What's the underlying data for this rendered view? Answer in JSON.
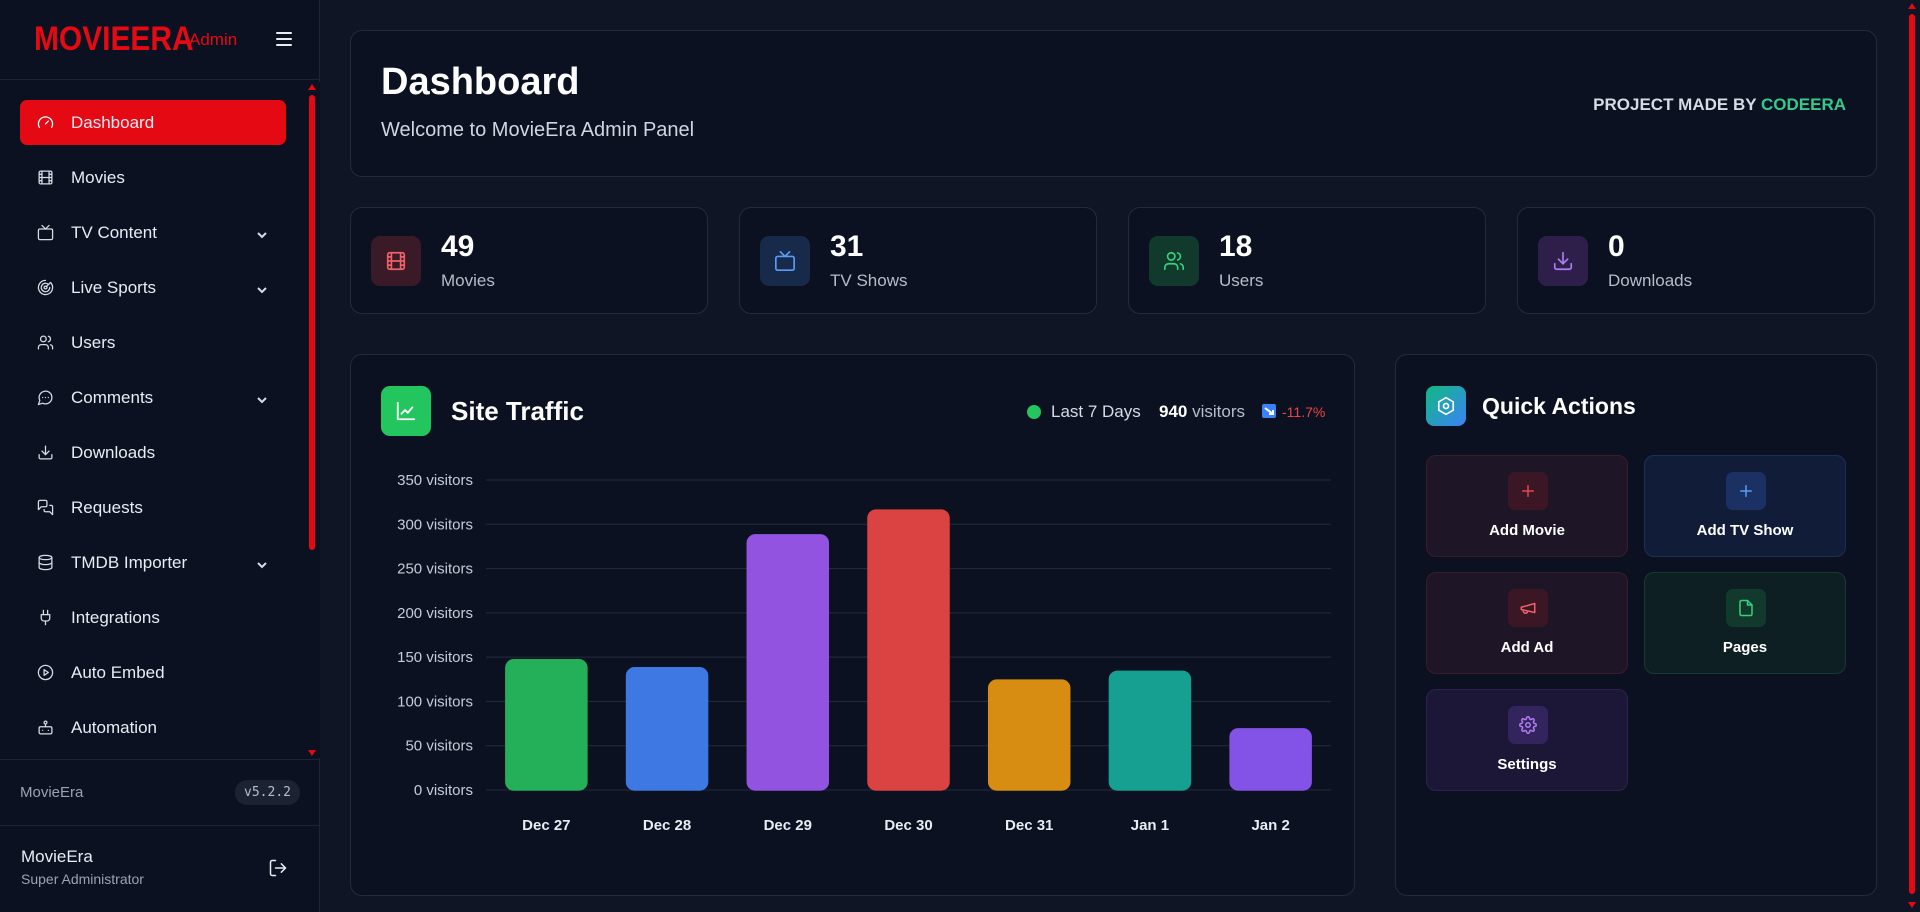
{
  "sidebar": {
    "logo": "MOVIEERA",
    "admin_tag": "Admin",
    "items": [
      {
        "label": "Dashboard",
        "icon": "gauge-icon",
        "active": true,
        "expandable": false
      },
      {
        "label": "Movies",
        "icon": "film-icon",
        "active": false,
        "expandable": false
      },
      {
        "label": "TV Content",
        "icon": "tv-icon",
        "active": false,
        "expandable": true
      },
      {
        "label": "Live Sports",
        "icon": "radar-icon",
        "active": false,
        "expandable": true
      },
      {
        "label": "Users",
        "icon": "users-icon",
        "active": false,
        "expandable": false
      },
      {
        "label": "Comments",
        "icon": "message-icon",
        "active": false,
        "expandable": true
      },
      {
        "label": "Downloads",
        "icon": "download-icon",
        "active": false,
        "expandable": false
      },
      {
        "label": "Requests",
        "icon": "messages-square-icon",
        "active": false,
        "expandable": false
      },
      {
        "label": "TMDB Importer",
        "icon": "database-icon",
        "active": false,
        "expandable": true
      },
      {
        "label": "Integrations",
        "icon": "plug-icon",
        "active": false,
        "expandable": false
      },
      {
        "label": "Auto Embed",
        "icon": "play-circle-icon",
        "active": false,
        "expandable": false
      },
      {
        "label": "Automation",
        "icon": "bot-icon",
        "active": false,
        "expandable": false
      }
    ],
    "footer": {
      "app_name": "MovieEra",
      "version": "v5.2.2",
      "user_name": "MovieEra",
      "user_role": "Super Administrator"
    }
  },
  "header": {
    "title": "Dashboard",
    "subtitle": "Welcome to MovieEra Admin Panel",
    "credit_prefix": "PROJECT MADE BY ",
    "credit_name": "CODEERA"
  },
  "stats": [
    {
      "value": "49",
      "label": "Movies",
      "icon": "film-icon",
      "color": "#f0606a",
      "bg": "#3a1a26"
    },
    {
      "value": "31",
      "label": "TV Shows",
      "icon": "tv-icon",
      "color": "#5b9cf6",
      "bg": "#172a4a"
    },
    {
      "value": "18",
      "label": "Users",
      "icon": "users-icon",
      "color": "#34d27f",
      "bg": "#123a2c"
    },
    {
      "value": "0",
      "label": "Downloads",
      "icon": "download-icon",
      "color": "#b07cf2",
      "bg": "#2d1f4a"
    }
  ],
  "traffic": {
    "title": "Site Traffic",
    "range": "Last 7 Days",
    "visitors_count": "940",
    "visitors_label": "visitors",
    "trend": "-11.7%"
  },
  "chart_data": {
    "type": "bar",
    "categories": [
      "Dec 27",
      "Dec 28",
      "Dec 29",
      "Dec 30",
      "Dec 31",
      "Jan 1",
      "Jan 2"
    ],
    "values": [
      147,
      138,
      288,
      316,
      124,
      134,
      69
    ],
    "colors": [
      "#22a855",
      "#3b73d8",
      "#8b4fd6",
      "#d13f3f",
      "#cc8610",
      "#14988a",
      "#7c4fdb"
    ],
    "y_ticks": [
      "0 visitors",
      "50 visitors",
      "100 visitors",
      "150 visitors",
      "200 visitors",
      "250 visitors",
      "300 visitors",
      "350 visitors"
    ],
    "ylim": [
      0,
      350
    ],
    "grid": true
  },
  "quick_actions": {
    "title": "Quick Actions",
    "buttons": [
      {
        "label": "Add Movie",
        "icon": "plus-icon",
        "color": "#e5484d",
        "bg": "#1e1626",
        "border": "#3a1c2a",
        "icon_bg": "#3b1726"
      },
      {
        "label": "Add TV Show",
        "icon": "plus-icon",
        "color": "#5b9cf6",
        "bg": "#111d38",
        "border": "#1d2e54",
        "icon_bg": "#1b3163"
      },
      {
        "label": "Add Ad",
        "icon": "megaphone-icon",
        "color": "#f0606a",
        "bg": "#1e1626",
        "border": "#3a1c2a",
        "icon_bg": "#3b1726"
      },
      {
        "label": "Pages",
        "icon": "file-icon",
        "color": "#34d27f",
        "bg": "#0e1f24",
        "border": "#163a30",
        "icon_bg": "#123a2c"
      },
      {
        "label": "Settings",
        "icon": "gear-icon",
        "color": "#b07cf2",
        "bg": "#1c1736",
        "border": "#2b2350",
        "icon_bg": "#33245e"
      }
    ]
  }
}
